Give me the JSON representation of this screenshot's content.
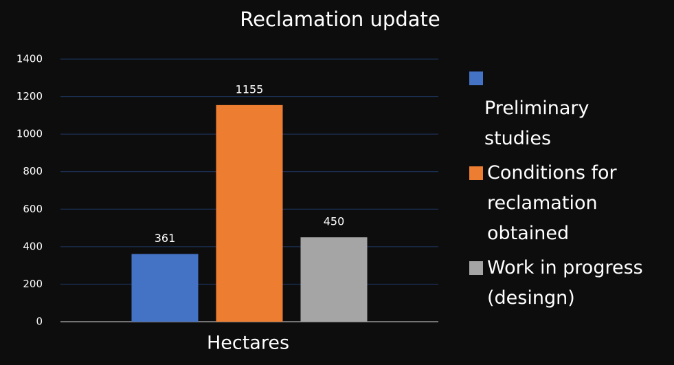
{
  "chart_data": {
    "type": "bar",
    "title": "Reclamation update",
    "categories": [
      "Hectares"
    ],
    "series": [
      {
        "name": "Preliminary studies",
        "color": "#4472c4",
        "values": [
          361
        ]
      },
      {
        "name": "Conditions for reclamation obtained",
        "color": "#ed7d31",
        "values": [
          1155
        ]
      },
      {
        "name": "Work in progress (desingn)",
        "color": "#a5a5a5",
        "values": [
          450
        ]
      }
    ],
    "ylim": [
      0,
      1400
    ],
    "yticks": [
      0,
      200,
      400,
      600,
      800,
      1000,
      1200,
      1400
    ],
    "grid": true,
    "legend": "right"
  }
}
